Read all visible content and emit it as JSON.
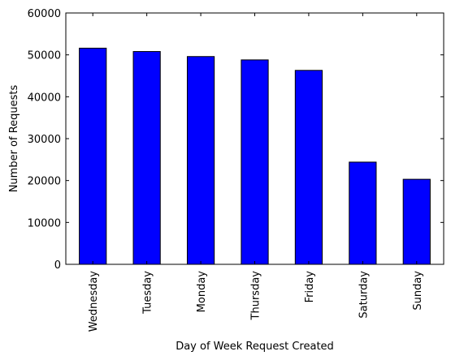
{
  "chart_data": {
    "type": "bar",
    "title": "",
    "xlabel": "Day of Week Request Created",
    "ylabel": "Number of Requests",
    "categories": [
      "Wednesday",
      "Tuesday",
      "Monday",
      "Thursday",
      "Friday",
      "Saturday",
      "Sunday"
    ],
    "values": [
      51600,
      50800,
      49600,
      48800,
      46300,
      24400,
      20300
    ],
    "ylim": [
      0,
      60000
    ],
    "yticks": [
      0,
      10000,
      20000,
      30000,
      40000,
      50000,
      60000
    ],
    "ytick_labels": [
      "0",
      "10000",
      "20000",
      "30000",
      "40000",
      "50000",
      "60000"
    ],
    "grid": false,
    "legend": "none",
    "bar_color": "#0000ff",
    "edge_color": "#000000"
  }
}
